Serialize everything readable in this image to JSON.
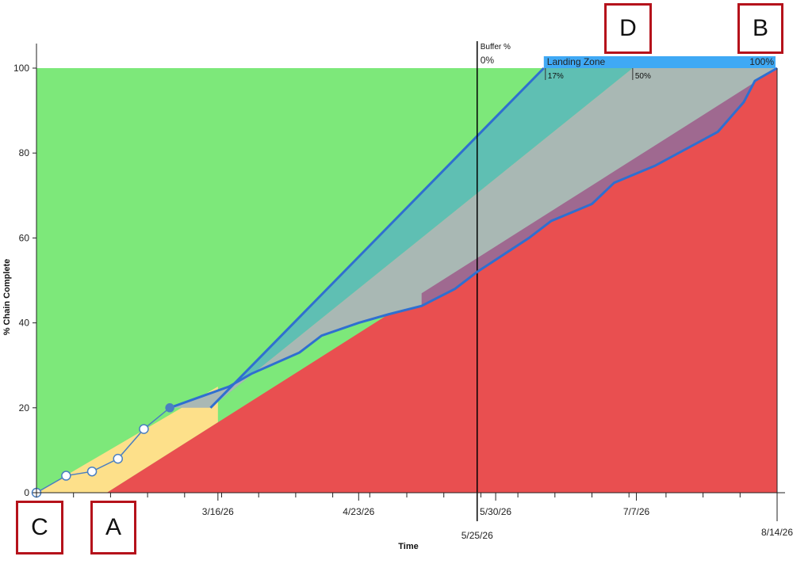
{
  "chart_data": {
    "type": "area",
    "xlabel": "Time",
    "ylabel": "% Chain Complete",
    "ylim": [
      0,
      100
    ],
    "xlim": [
      "2026-01-26",
      "2026-08-14"
    ],
    "yticks": [
      0,
      20,
      40,
      60,
      80,
      100
    ],
    "xticks": [
      {
        "date": "2026-03-16",
        "label": "3/16/26"
      },
      {
        "date": "2026-04-23",
        "label": "4/23/26"
      },
      {
        "date": "2026-05-30",
        "label": "5/30/26"
      },
      {
        "date": "2026-07-07",
        "label": "7/7/26"
      }
    ],
    "end_date_label": "8/14/26",
    "buffer_line": {
      "date": "2026-05-25",
      "label": "5/25/26",
      "title": "Buffer %",
      "value_label": "0%"
    },
    "regions": {
      "green": "#7de87a",
      "yellow": "#fde08a",
      "red": "#e94f50",
      "teal": "#5fbfb3",
      "gray": "#a9b8b4",
      "purple": "#9d5a8a"
    },
    "zone_lines": {
      "red_zone": [
        {
          "x": "2026-02-14",
          "y": 0
        },
        {
          "x": "2026-08-14",
          "y": 100
        }
      ],
      "green_yellow": [
        {
          "x": "2026-01-26",
          "y": 0
        },
        {
          "x": "2026-03-16",
          "y": 25
        }
      ],
      "zone_top": [
        {
          "x": "2026-03-14",
          "y": 20
        },
        {
          "x": "2026-06-12",
          "y": 100
        }
      ],
      "teal_gray": [
        {
          "x": "2026-03-14",
          "y": 20
        },
        {
          "x": "2026-07-06",
          "y": 100
        }
      ]
    },
    "landing_zone": {
      "title": "Landing Zone",
      "start": "2026-06-12",
      "end": "2026-08-14",
      "start_pct_label": "17%",
      "mid_pct_label": "50%",
      "mid_date": "2026-07-06",
      "end_pct_label": "100%",
      "color": "#3fa9f5"
    },
    "series": [
      {
        "type": "actual",
        "color": "#4a7fc1",
        "points": [
          {
            "x": "2026-01-26",
            "y": 0
          },
          {
            "x": "2026-02-03",
            "y": 4
          },
          {
            "x": "2026-02-10",
            "y": 5
          },
          {
            "x": "2026-02-17",
            "y": 8
          },
          {
            "x": "2026-02-24",
            "y": 15
          },
          {
            "x": "2026-03-03",
            "y": 20
          }
        ]
      },
      {
        "type": "forecast",
        "color": "#2f6fd0",
        "points": [
          {
            "x": "2026-03-03",
            "y": 20
          },
          {
            "x": "2026-03-19",
            "y": 25
          },
          {
            "x": "2026-03-25",
            "y": 28
          },
          {
            "x": "2026-04-07",
            "y": 33
          },
          {
            "x": "2026-04-13",
            "y": 37
          },
          {
            "x": "2026-04-23",
            "y": 40
          },
          {
            "x": "2026-05-01",
            "y": 42
          },
          {
            "x": "2026-05-10",
            "y": 44
          },
          {
            "x": "2026-05-19",
            "y": 48
          },
          {
            "x": "2026-05-25",
            "y": 52
          },
          {
            "x": "2026-06-01",
            "y": 56
          },
          {
            "x": "2026-06-08",
            "y": 60
          },
          {
            "x": "2026-06-14",
            "y": 64
          },
          {
            "x": "2026-06-25",
            "y": 68
          },
          {
            "x": "2026-07-01",
            "y": 73
          },
          {
            "x": "2026-07-12",
            "y": 77
          },
          {
            "x": "2026-07-29",
            "y": 85
          },
          {
            "x": "2026-08-05",
            "y": 92
          },
          {
            "x": "2026-08-08",
            "y": 97
          },
          {
            "x": "2026-08-14",
            "y": 100
          }
        ]
      }
    ]
  },
  "markers": {
    "a": "A",
    "b": "B",
    "c": "C",
    "d": "D"
  }
}
